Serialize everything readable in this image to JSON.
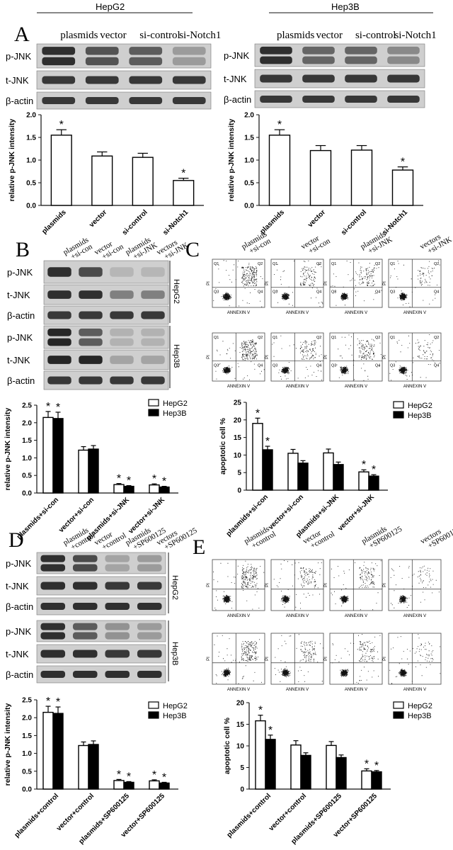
{
  "figure": {
    "panels": {
      "A": "A",
      "B": "B",
      "C": "C",
      "D": "D",
      "E": "E"
    },
    "cell_lines": {
      "hepg2": "HepG2",
      "hep3b": "Hep3B"
    },
    "blot_labels": {
      "pjnk": "p-JNK",
      "tjnk": "t-JNK",
      "actin": "β-actin"
    },
    "flow_axis": {
      "x": "ANNEXIN V",
      "y": "PI"
    },
    "quadrants": [
      "Q1",
      "Q2",
      "Q3",
      "Q4"
    ],
    "axis_labels": {
      "relative": "relative p-JNK intensity",
      "apoptotic": "apoptotic cell %"
    },
    "legend": {
      "hepg2": "HepG2",
      "hep3b": "Hep3B"
    },
    "lanes_A": [
      "plasmids",
      "vector",
      "si-control",
      "si-Notch1"
    ],
    "lanes_B": [
      "plasmids\n+si-con",
      "vector\n+si-con",
      "plasmids\n+si-JNK",
      "vectors\n+si-JNK"
    ],
    "lanes_C": [
      "plasmids\n+si-con",
      "vector\n+si-con",
      "plasmids\n+si-JNK",
      "vectors\n+si-JNK"
    ],
    "lanes_D": [
      "plasmids\n+control",
      "vector\n+control",
      "plasmids\n+SP600125",
      "vectors\n+SP600125"
    ],
    "lanes_E": [
      "plasmids\n+control",
      "vector\n+control",
      "plasmids\n+SP600125",
      "vectors\n+SP600125"
    ]
  },
  "chart_data": [
    {
      "id": "A-HepG2",
      "type": "bar",
      "title": "HepG2",
      "ylabel": "relative p-JNK intensity",
      "categories": [
        "plasmids",
        "vector",
        "si-control",
        "si-Notch1"
      ],
      "series": [
        {
          "values": [
            1.55,
            1.09,
            1.06,
            0.55
          ],
          "errors": [
            0.12,
            0.09,
            0.09,
            0.05
          ],
          "significant": [
            true,
            false,
            false,
            true
          ]
        }
      ],
      "ylim": [
        0,
        2.0
      ],
      "yticks": [
        0.0,
        0.5,
        1.0,
        1.5,
        2.0
      ]
    },
    {
      "id": "A-Hep3B",
      "type": "bar",
      "title": "Hep3B",
      "ylabel": "relative p-JNK intensity",
      "categories": [
        "plasmids",
        "vector",
        "si-control",
        "si-Notch1"
      ],
      "series": [
        {
          "values": [
            1.55,
            1.21,
            1.22,
            0.78
          ],
          "errors": [
            0.12,
            0.11,
            0.1,
            0.07
          ],
          "significant": [
            true,
            false,
            false,
            true
          ]
        }
      ],
      "ylim": [
        0,
        2.0
      ],
      "yticks": [
        0.0,
        0.5,
        1.0,
        1.5,
        2.0
      ]
    },
    {
      "id": "B",
      "type": "bar",
      "ylabel": "relative p-JNK intensity",
      "categories": [
        "plasmids+si-con",
        "vector+si-con",
        "plasmids+si-JNK",
        "vector+si-JNK"
      ],
      "series": [
        {
          "name": "HepG2",
          "values": [
            2.15,
            1.22,
            0.24,
            0.23
          ],
          "errors": [
            0.17,
            0.1,
            0.03,
            0.03
          ],
          "significant": [
            true,
            false,
            true,
            true
          ]
        },
        {
          "name": "Hep3B",
          "values": [
            2.12,
            1.25,
            0.19,
            0.17
          ],
          "errors": [
            0.18,
            0.1,
            0.02,
            0.02
          ],
          "significant": [
            true,
            false,
            true,
            true
          ]
        }
      ],
      "ylim": [
        0,
        2.5
      ],
      "yticks": [
        0.0,
        0.5,
        1.0,
        1.5,
        2.0,
        2.5
      ],
      "legend": "top-right"
    },
    {
      "id": "C",
      "type": "bar",
      "ylabel": "apoptotic cell %",
      "categories": [
        "plasmids+si-con",
        "vector+si-con",
        "plasmids+si-JNK",
        "vector+si-JNK"
      ],
      "series": [
        {
          "name": "HepG2",
          "values": [
            19,
            10.5,
            10.6,
            5.2
          ],
          "errors": [
            1.5,
            1.1,
            1.1,
            0.6
          ],
          "significant": [
            true,
            false,
            false,
            true
          ]
        },
        {
          "name": "Hep3B",
          "values": [
            11.5,
            7.7,
            7.3,
            4.0
          ],
          "errors": [
            1.0,
            0.7,
            0.7,
            0.4
          ],
          "significant": [
            true,
            false,
            false,
            true
          ]
        }
      ],
      "ylim": [
        0,
        25
      ],
      "yticks": [
        0,
        5,
        10,
        15,
        20,
        25
      ],
      "legend": "top-right"
    },
    {
      "id": "D",
      "type": "bar",
      "ylabel": "relative p-JNK intensity",
      "categories": [
        "plasmids+control",
        "vector+control",
        "plasmids+SP600125",
        "vector+SP600125"
      ],
      "series": [
        {
          "name": "HepG2",
          "values": [
            2.15,
            1.22,
            0.24,
            0.23
          ],
          "errors": [
            0.17,
            0.1,
            0.03,
            0.03
          ],
          "significant": [
            true,
            false,
            true,
            true
          ]
        },
        {
          "name": "Hep3B",
          "values": [
            2.12,
            1.25,
            0.19,
            0.17
          ],
          "errors": [
            0.18,
            0.1,
            0.02,
            0.02
          ],
          "significant": [
            true,
            false,
            true,
            true
          ]
        }
      ],
      "ylim": [
        0,
        2.5
      ],
      "yticks": [
        0.0,
        0.5,
        1.0,
        1.5,
        2.0,
        2.5
      ],
      "legend": "top-right"
    },
    {
      "id": "E",
      "type": "bar",
      "ylabel": "apoptotic cell %",
      "categories": [
        "plasmids+control",
        "vector+control",
        "plasmids+SP600125",
        "vector+SP600125"
      ],
      "series": [
        {
          "name": "HepG2",
          "values": [
            15.8,
            10.2,
            10.1,
            4.2
          ],
          "errors": [
            1.3,
            1.0,
            0.9,
            0.5
          ],
          "significant": [
            true,
            false,
            false,
            true
          ]
        },
        {
          "name": "Hep3B",
          "values": [
            11.5,
            7.8,
            7.3,
            4.0
          ],
          "errors": [
            1.0,
            0.6,
            0.6,
            0.3
          ],
          "significant": [
            true,
            false,
            false,
            true
          ]
        }
      ],
      "ylim": [
        0,
        20
      ],
      "yticks": [
        0,
        5,
        10,
        15,
        20
      ],
      "legend": "top-right"
    }
  ]
}
